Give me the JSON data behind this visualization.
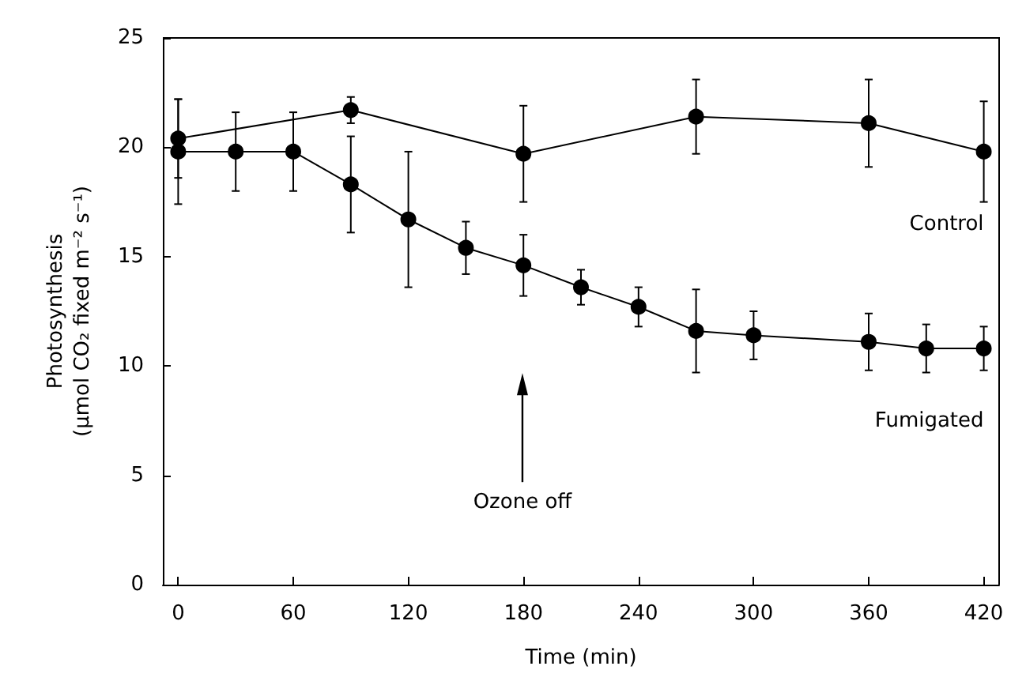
{
  "chart_data": {
    "type": "line",
    "xlabel": "Time (min)",
    "ylabel": "Photosynthesis\n(μmol CO₂ fixed m⁻² s⁻¹)",
    "xlim": [
      -8,
      428
    ],
    "xticks": [
      0,
      60,
      120,
      180,
      240,
      300,
      360,
      420
    ],
    "ylim": [
      0,
      25
    ],
    "yticks": [
      0,
      5,
      10,
      15,
      20,
      25
    ],
    "grid": false,
    "legend": false,
    "marker": "circle",
    "line_style": "solid",
    "series": [
      {
        "name": "Control",
        "color": "#000000",
        "x": [
          0,
          90,
          180,
          270,
          360,
          420
        ],
        "values": [
          20.4,
          21.7,
          19.7,
          21.4,
          21.1,
          19.8
        ],
        "errors": [
          1.8,
          0.6,
          2.2,
          1.7,
          2.0,
          2.3
        ]
      },
      {
        "name": "Fumigated",
        "color": "#000000",
        "x": [
          0,
          30,
          60,
          90,
          120,
          150,
          180,
          210,
          240,
          270,
          300,
          360,
          390,
          420
        ],
        "values": [
          19.8,
          19.8,
          19.8,
          18.3,
          16.7,
          15.4,
          14.6,
          13.6,
          12.7,
          11.6,
          11.4,
          11.1,
          10.8,
          10.8
        ],
        "errors": [
          2.4,
          1.8,
          1.8,
          2.2,
          3.1,
          1.2,
          1.4,
          0.8,
          0.9,
          1.9,
          1.1,
          1.3,
          1.1,
          1.0
        ]
      }
    ],
    "annotations": [
      "Ozone off"
    ]
  }
}
